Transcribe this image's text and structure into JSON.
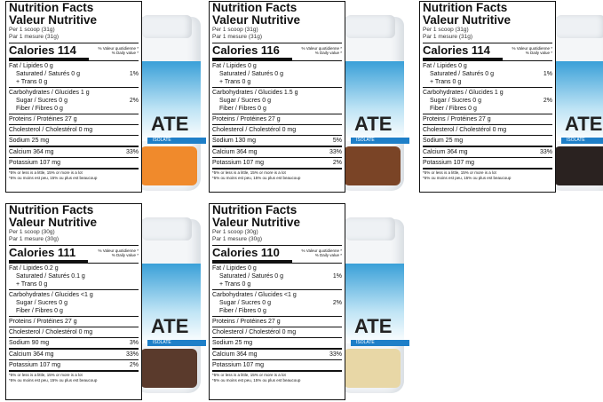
{
  "panels": [
    {
      "title1": "Nutrition Facts",
      "title2": "Valeur Nutritive",
      "serving1": "Per 1 scoop (31g)",
      "serving2": "Par 1 mesure (31g)",
      "calories": "Calories 114",
      "dv1": "% Valeur quotidienne *",
      "dv2": "% Daily value *",
      "fat": "Fat / Lipides 0 g",
      "saturated": "Saturated / Saturés 0 g",
      "trans": "+ Trans 0 g",
      "fat_pct": "1%",
      "carbs": "Carbohydrates / Glucides 1 g",
      "sugar": "Sugar / Sucres 0 g",
      "fiber": "Fiber / Fibres 0 g",
      "carbs_pct": "2%",
      "protein": "Proteins / Protéines 27 g",
      "cholesterol": "Cholesterol / Cholestérol 0 mg",
      "sodium": "Sodium 25 mg",
      "sodium_pct": "",
      "calcium": "Calcium 364 mg",
      "calcium_pct": "33%",
      "potassium": "Potassium 107 mg",
      "potassium_pct": "",
      "foot1": "*5% or less is a little, 15% or more is a lot",
      "foot2": "*5% ou moins est peu, 15% ou plus est beaucoup",
      "flavor_color": "#f08a2c"
    },
    {
      "title1": "Nutrition Facts",
      "title2": "Valeur Nutritive",
      "serving1": "Per 1 scoop (31g)",
      "serving2": "Par 1 mesure (31g)",
      "calories": "Calories 116",
      "dv1": "% Valeur quotidienne *",
      "dv2": "% Daily value *",
      "fat": "Fat / Lipides 0 g",
      "saturated": "Saturated / Saturés 0 g",
      "trans": "+ Trans 0 g",
      "fat_pct": "",
      "carbs": "Carbohydrates / Glucides 1.5 g",
      "sugar": "Sugar / Sucres 0 g",
      "fiber": "Fiber / Fibres 0 g",
      "carbs_pct": "",
      "protein": "Proteins / Protéines 27 g",
      "cholesterol": "Cholesterol / Cholestérol 0 mg",
      "sodium": "Sodium 130 mg",
      "sodium_pct": "5%",
      "calcium": "Calcium 364 mg",
      "calcium_pct": "33%",
      "potassium": "Potassium 107 mg",
      "potassium_pct": "2%",
      "foot1": "*5% or less is a little, 15% or more is a lot",
      "foot2": "*5% ou moins est peu, 15% ou plus est beaucoup",
      "flavor_color": "#7a4426"
    },
    {
      "title1": "Nutrition Facts",
      "title2": "Valeur Nutritive",
      "serving1": "Per 1 scoop (31g)",
      "serving2": "Par 1 mesure (31g)",
      "calories": "Calories 114",
      "dv1": "% Valeur quotidienne *",
      "dv2": "% Daily value *",
      "fat": "Fat / Lipides 0 g",
      "saturated": "Saturated / Saturés 0 g",
      "trans": "+ Trans 0 g",
      "fat_pct": "1%",
      "carbs": "Carbohydrates / Glucides 1 g",
      "sugar": "Sugar / Sucres 0 g",
      "fiber": "Fiber / Fibres 0 g",
      "carbs_pct": "2%",
      "protein": "Proteins / Protéines 27 g",
      "cholesterol": "Cholesterol / Cholestérol 0 mg",
      "sodium": "Sodium 25 mg",
      "sodium_pct": "",
      "calcium": "Calcium 364 mg",
      "calcium_pct": "33%",
      "potassium": "Potassium 107 mg",
      "potassium_pct": "",
      "foot1": "*5% or less is a little, 15% or more is a lot",
      "foot2": "*5% ou moins est peu, 15% ou plus est beaucoup",
      "flavor_color": "#2a2220"
    },
    {
      "title1": "Nutrition Facts",
      "title2": "Valeur Nutritive",
      "serving1": "Per 1 scoop (30g)",
      "serving2": "Par 1 mesure (30g)",
      "calories": "Calories 111",
      "dv1": "% Valeur quotidienne *",
      "dv2": "% Daily value *",
      "fat": "Fat / Lipides 0.2 g",
      "saturated": "Saturated / Saturés 0.1 g",
      "trans": "+ Trans 0 g",
      "fat_pct": "",
      "carbs": "Carbohydrates / Glucides <1 g",
      "sugar": "Sugar / Sucres 0 g",
      "fiber": "Fiber / Fibres 0 g",
      "carbs_pct": "",
      "protein": "Proteins / Protéines 27 g",
      "cholesterol": "Cholesterol / Cholestérol 0 mg",
      "sodium": "Sodium 90 mg",
      "sodium_pct": "3%",
      "calcium": "Calcium 364 mg",
      "calcium_pct": "33%",
      "potassium": "Potassium 107 mg",
      "potassium_pct": "2%",
      "foot1": "*5% or less is a little, 15% or more is a lot",
      "foot2": "*5% ou moins est peu, 15% ou plus est beaucoup",
      "flavor_color": "#5a3a2c"
    },
    {
      "title1": "Nutrition Facts",
      "title2": "Valeur Nutritive",
      "serving1": "Per 1 scoop (30g)",
      "serving2": "Par 1 mesure (30g)",
      "calories": "Calories 110",
      "dv1": "% Valeur quotidienne *",
      "dv2": "% Daily value *",
      "fat": "Fat / Lipides 0 g",
      "saturated": "Saturated / Saturés 0 g",
      "trans": "+ Trans 0 g",
      "fat_pct": "1%",
      "carbs": "Carbohydrates / Glucides <1 g",
      "sugar": "Sugar / Sucres 0 g",
      "fiber": "Fiber / Fibres 0 g",
      "carbs_pct": "2%",
      "protein": "Proteins / Protéines 27 g",
      "cholesterol": "Cholesterol / Cholestérol 0 mg",
      "sodium": "Sodium 25 mg",
      "sodium_pct": "",
      "calcium": "Calcium 364 mg",
      "calcium_pct": "33%",
      "potassium": "Potassium 107 mg",
      "potassium_pct": "",
      "foot1": "*5% or less is a little, 15% or more is a lot",
      "foot2": "*5% ou moins est peu, 15% ou plus est beaucoup",
      "flavor_color": "#e8d7a6"
    }
  ],
  "bottle_brand": "ATE",
  "bottle_band": "ISOLATE"
}
